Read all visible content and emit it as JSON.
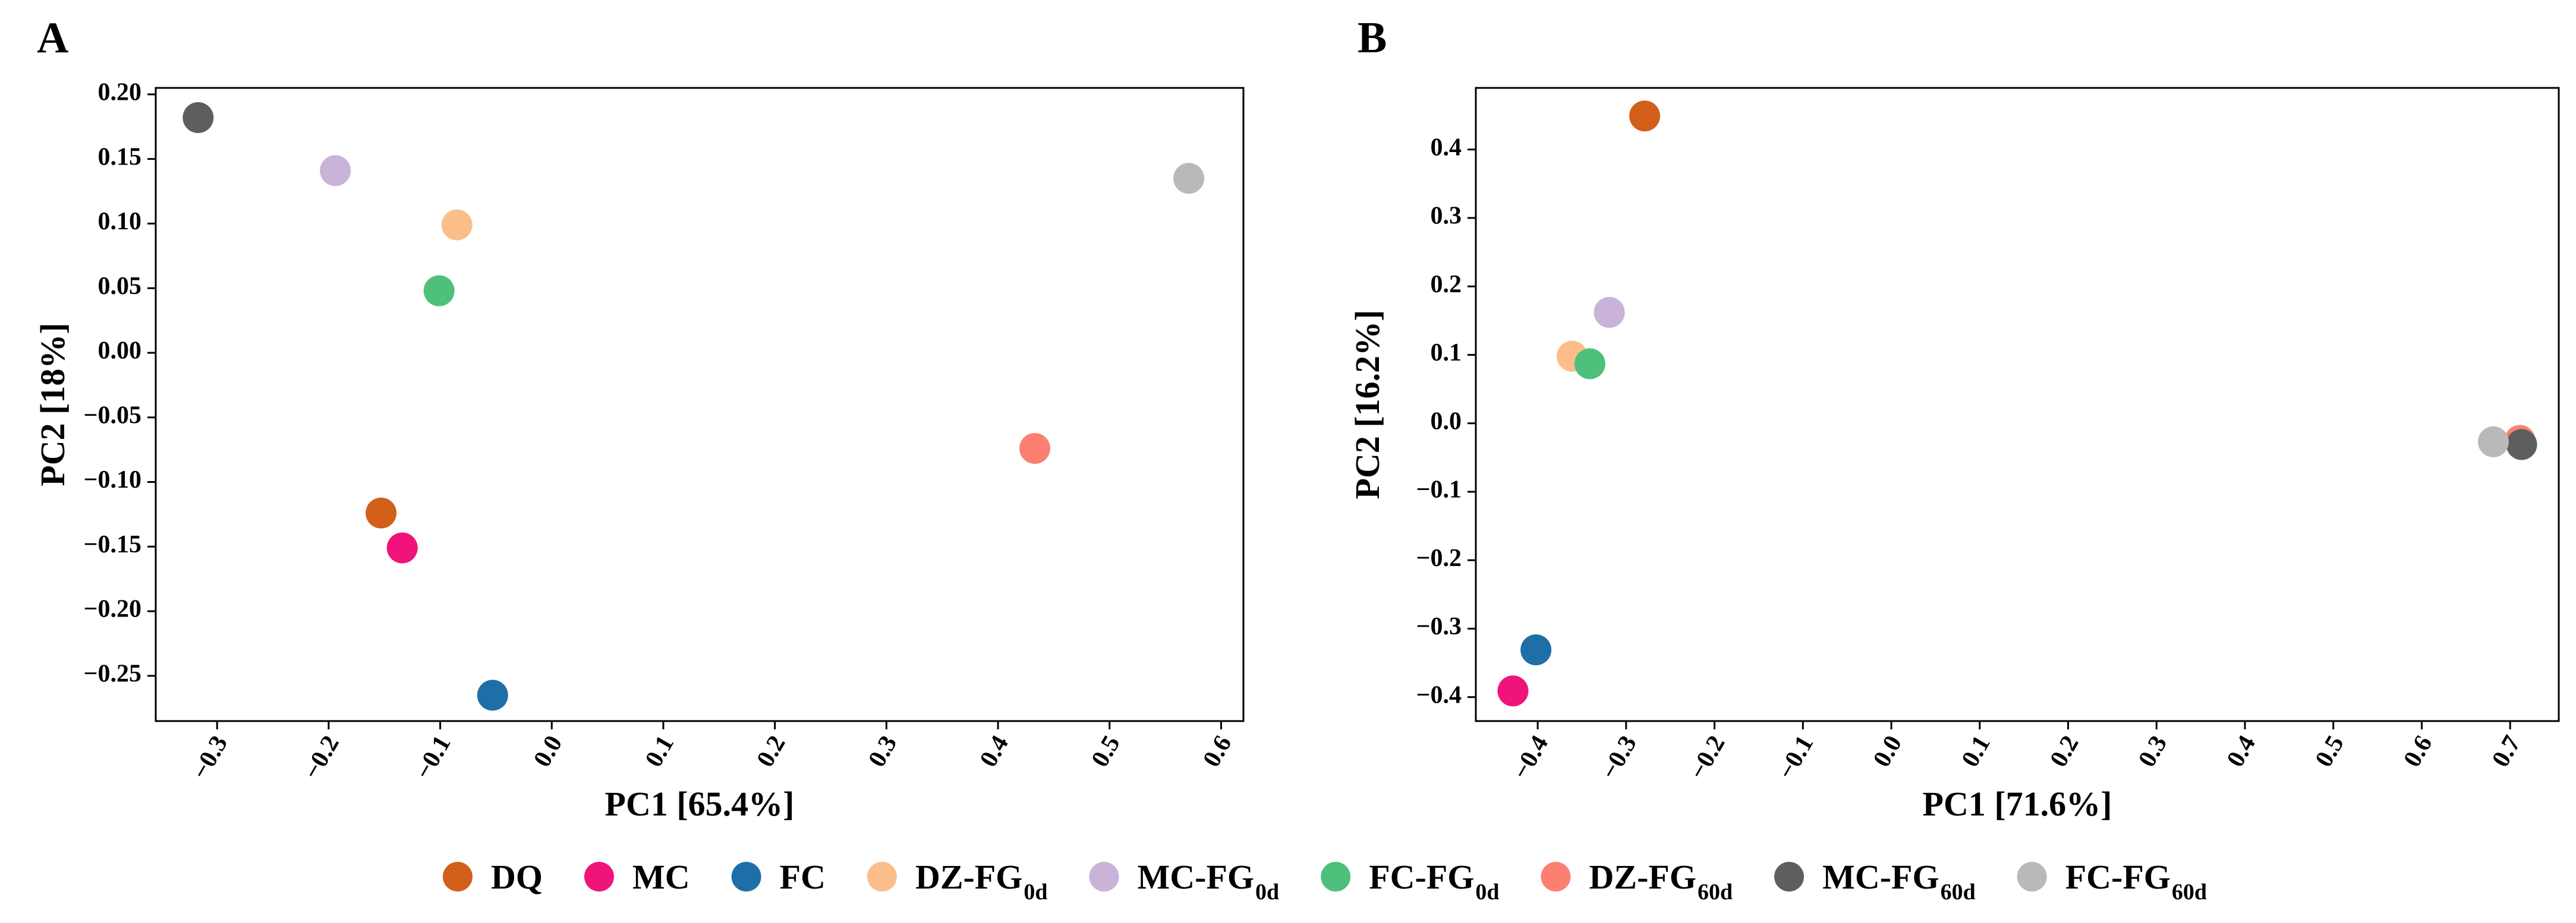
{
  "chart_data": [
    {
      "type": "scatter",
      "panel_label": "A",
      "xlabel": "PC1 [65.4%]",
      "ylabel": "PC2 [18%]",
      "xlim": [
        -0.355,
        0.62
      ],
      "ylim": [
        -0.285,
        0.205
      ],
      "xticks": [
        -0.3,
        -0.2,
        -0.1,
        0.0,
        0.1,
        0.2,
        0.3,
        0.4,
        0.5,
        0.6
      ],
      "xtick_labels": [
        "−0.3",
        "−0.2",
        "−0.1",
        "0.0",
        "0.1",
        "0.2",
        "0.3",
        "0.4",
        "0.5",
        "0.6"
      ],
      "yticks": [
        -0.25,
        -0.2,
        -0.15,
        -0.1,
        -0.05,
        0.0,
        0.05,
        0.1,
        0.15,
        0.2
      ],
      "ytick_labels": [
        "−0.25",
        "−0.20",
        "−0.15",
        "−0.10",
        "−0.05",
        "0.00",
        "0.05",
        "0.10",
        "0.15",
        "0.20"
      ],
      "grid": false,
      "points": [
        {
          "group": "DQ",
          "x": -0.153,
          "y": -0.124
        },
        {
          "group": "MC",
          "x": -0.134,
          "y": -0.151
        },
        {
          "group": "FC",
          "x": -0.053,
          "y": -0.265
        },
        {
          "group": "DZ-FG0d",
          "x": -0.085,
          "y": 0.099
        },
        {
          "group": "MC-FG0d",
          "x": -0.194,
          "y": 0.141
        },
        {
          "group": "FC-FG0d",
          "x": -0.101,
          "y": 0.048
        },
        {
          "group": "DZ-FG60d",
          "x": 0.433,
          "y": -0.074
        },
        {
          "group": "MC-FG60d",
          "x": -0.317,
          "y": 0.182
        },
        {
          "group": "FC-FG60d",
          "x": 0.571,
          "y": 0.135
        }
      ]
    },
    {
      "type": "scatter",
      "panel_label": "B",
      "xlabel": "PC1 [71.6%]",
      "ylabel": "PC2 [16.2%]",
      "xlim": [
        -0.47,
        0.755
      ],
      "ylim": [
        -0.435,
        0.49
      ],
      "xticks": [
        -0.4,
        -0.3,
        -0.2,
        -0.1,
        0.0,
        0.1,
        0.2,
        0.3,
        0.4,
        0.5,
        0.6,
        0.7
      ],
      "xtick_labels": [
        "−0.4",
        "−0.3",
        "−0.2",
        "−0.1",
        "0.0",
        "0.1",
        "0.2",
        "0.3",
        "0.4",
        "0.5",
        "0.6",
        "0.7"
      ],
      "yticks": [
        -0.4,
        -0.3,
        -0.2,
        -0.1,
        0.0,
        0.1,
        0.2,
        0.3,
        0.4
      ],
      "ytick_labels": [
        "−0.4",
        "−0.3",
        "−0.2",
        "−0.1",
        "0.0",
        "0.1",
        "0.2",
        "0.3",
        "0.4"
      ],
      "grid": false,
      "points": [
        {
          "group": "DQ",
          "x": -0.279,
          "y": 0.449
        },
        {
          "group": "MC",
          "x": -0.428,
          "y": -0.391
        },
        {
          "group": "FC",
          "x": -0.402,
          "y": -0.331
        },
        {
          "group": "DZ-FG0d",
          "x": -0.361,
          "y": 0.098
        },
        {
          "group": "MC-FG0d",
          "x": -0.319,
          "y": 0.162
        },
        {
          "group": "FC-FG0d",
          "x": -0.341,
          "y": 0.087
        },
        {
          "group": "DZ-FG60d",
          "x": 0.711,
          "y": -0.025
        },
        {
          "group": "MC-FG60d",
          "x": 0.713,
          "y": -0.031
        },
        {
          "group": "FC-FG60d",
          "x": 0.681,
          "y": -0.027
        }
      ]
    }
  ],
  "legend": {
    "position": "bottom-center",
    "items": [
      {
        "key": "DQ",
        "label": "DQ",
        "sub": "",
        "color": "#D2601A"
      },
      {
        "key": "MC",
        "label": "MC",
        "sub": "",
        "color": "#F0147A"
      },
      {
        "key": "FC",
        "label": "FC",
        "sub": "",
        "color": "#1E6FA8"
      },
      {
        "key": "DZ-FG0d",
        "label": "DZ-FG",
        "sub": "0d",
        "color": "#FBBE8A"
      },
      {
        "key": "MC-FG0d",
        "label": "MC-FG",
        "sub": "0d",
        "color": "#C9B3D8"
      },
      {
        "key": "FC-FG0d",
        "label": "FC-FG",
        "sub": "0d",
        "color": "#4FC07C"
      },
      {
        "key": "DZ-FG60d",
        "label": "DZ-FG",
        "sub": "60d",
        "color": "#FB8072"
      },
      {
        "key": "MC-FG60d",
        "label": "MC-FG",
        "sub": "60d",
        "color": "#5E5E5E"
      },
      {
        "key": "FC-FG60d",
        "label": "FC-FG",
        "sub": "60d",
        "color": "#B9B9B9"
      }
    ]
  }
}
